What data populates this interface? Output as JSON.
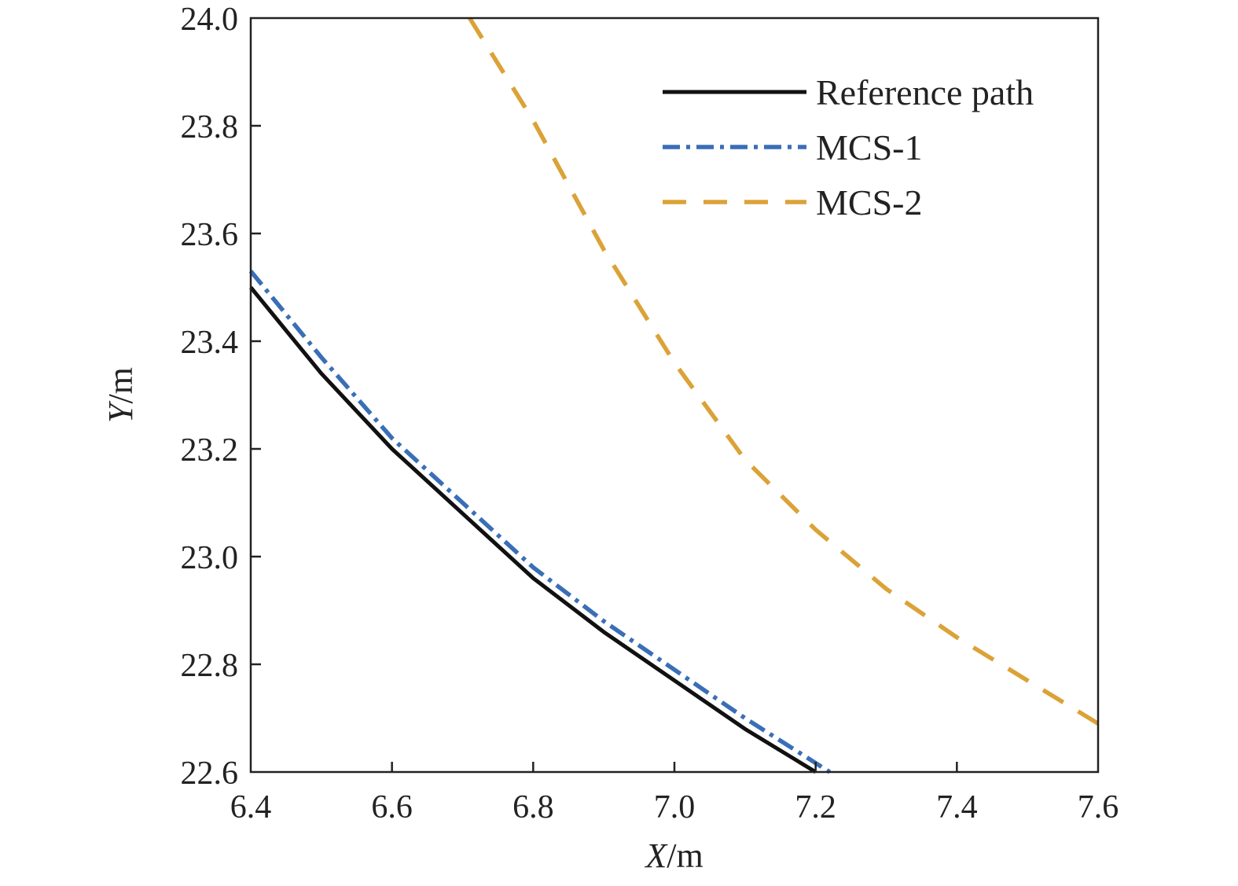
{
  "chart_data": {
    "type": "line",
    "title": "",
    "xlabel": {
      "var": "X",
      "unit": "/m"
    },
    "ylabel": {
      "var": "Y",
      "unit": "/m"
    },
    "xlim": [
      6.4,
      7.6
    ],
    "ylim": [
      22.6,
      24.0
    ],
    "xticks": [
      "6.4",
      "6.6",
      "6.8",
      "7.0",
      "7.2",
      "7.4",
      "7.6"
    ],
    "yticks": [
      "22.6",
      "22.8",
      "23.0",
      "23.2",
      "23.4",
      "23.6",
      "23.8",
      "24.0"
    ],
    "grid": false,
    "legend_position": "top-right",
    "series": [
      {
        "name": "Reference path",
        "color": "#111111",
        "style": "solid",
        "x": [
          6.4,
          6.5,
          6.6,
          6.7,
          6.8,
          6.9,
          7.0,
          7.1,
          7.2
        ],
        "y": [
          23.5,
          23.34,
          23.2,
          23.08,
          22.96,
          22.86,
          22.77,
          22.68,
          22.6
        ]
      },
      {
        "name": "MCS-1",
        "color": "#3a6fb7",
        "style": "dashdot",
        "x": [
          6.4,
          6.5,
          6.6,
          6.7,
          6.8,
          6.9,
          7.0,
          7.1,
          7.22
        ],
        "y": [
          23.53,
          23.37,
          23.22,
          23.1,
          22.98,
          22.88,
          22.79,
          22.7,
          22.6
        ]
      },
      {
        "name": "MCS-2",
        "color": "#dba237",
        "style": "dashed",
        "x": [
          6.71,
          6.8,
          6.9,
          7.0,
          7.1,
          7.2,
          7.3,
          7.4,
          7.5,
          7.6
        ],
        "y": [
          24.0,
          23.81,
          23.57,
          23.36,
          23.18,
          23.05,
          22.94,
          22.85,
          22.77,
          22.69
        ]
      }
    ]
  }
}
